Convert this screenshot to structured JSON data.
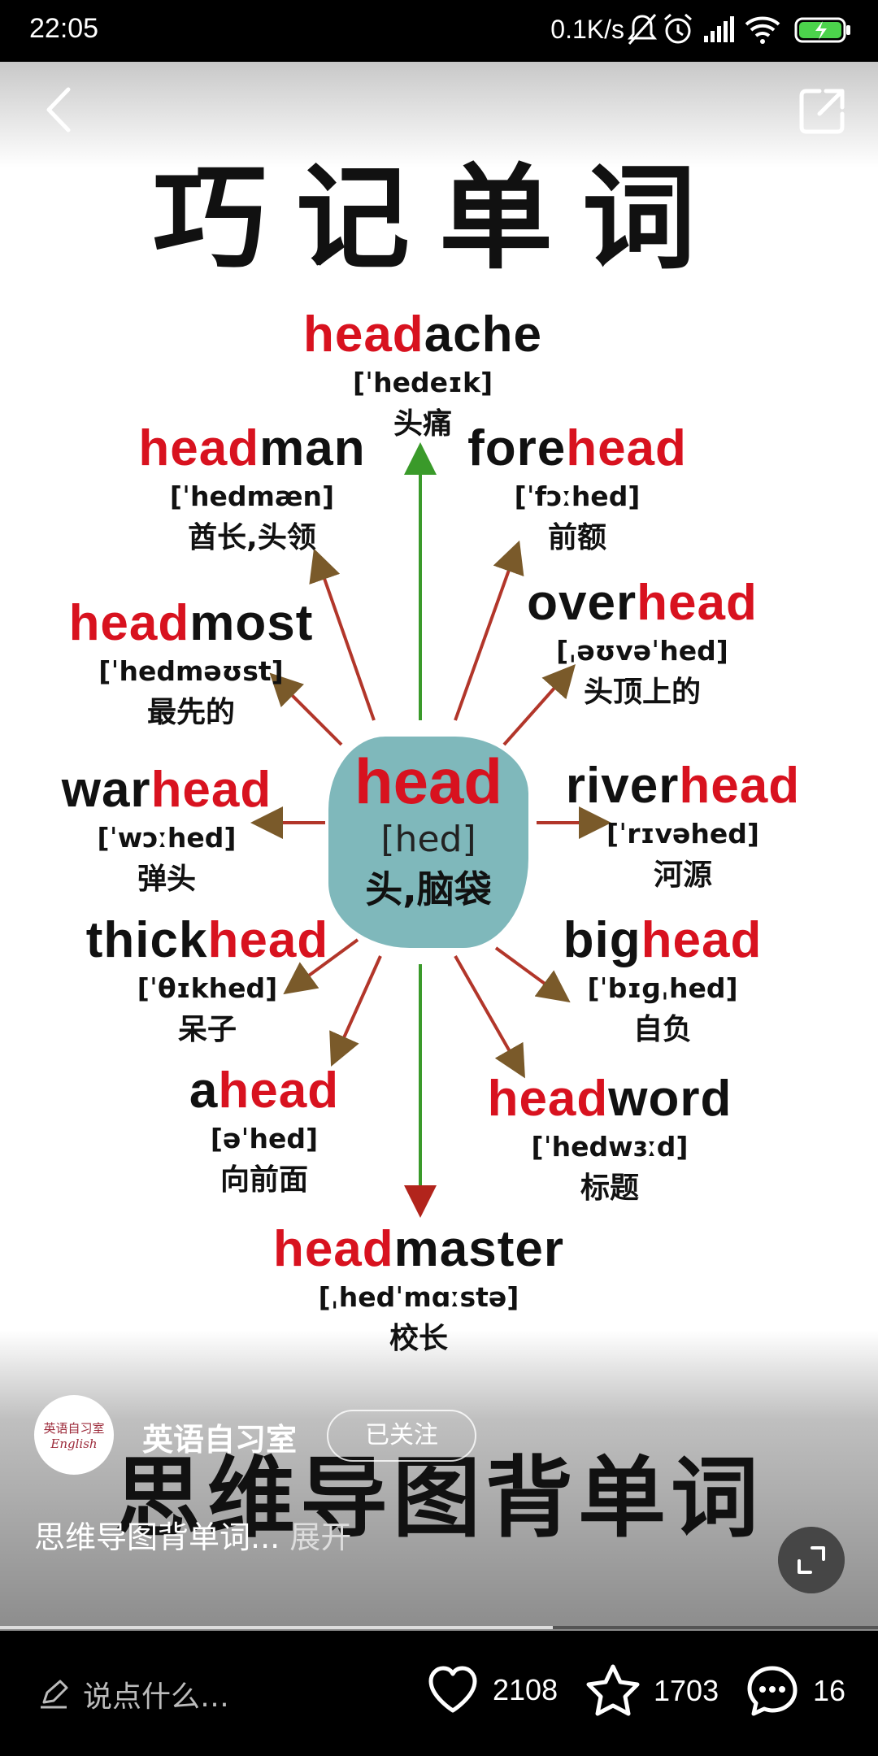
{
  "status_bar": {
    "time": "22:05",
    "net_speed": "0.1K/s"
  },
  "image": {
    "title": "巧记单词",
    "center": {
      "word": "head",
      "phonetic": "[hed]",
      "meaning": "头,脑袋"
    },
    "words": [
      {
        "red_prefix": "head",
        "black": "ache",
        "red_suffix": "",
        "phonetic": "[ˈhedeɪk]",
        "meaning": "头痛"
      },
      {
        "red_prefix": "",
        "black": "fore",
        "red_suffix": "head",
        "phonetic": "[ˈfɔːhed]",
        "meaning": "前额"
      },
      {
        "red_prefix": "head",
        "black": "man",
        "red_suffix": "",
        "phonetic": "[ˈhedmæn]",
        "meaning": "酋长,头领"
      },
      {
        "red_prefix": "",
        "black": "over",
        "red_suffix": "head",
        "phonetic": "[ˌəʊvəˈhed]",
        "meaning": "头顶上的"
      },
      {
        "red_prefix": "head",
        "black": "most",
        "red_suffix": "",
        "phonetic": "[ˈhedməʊst]",
        "meaning": "最先的"
      },
      {
        "red_prefix": "",
        "black": "war",
        "red_suffix": "head",
        "phonetic": "[ˈwɔːhed]",
        "meaning": "弹头"
      },
      {
        "red_prefix": "",
        "black": "river",
        "red_suffix": "head",
        "phonetic": "[ˈrɪvəhed]",
        "meaning": "河源"
      },
      {
        "red_prefix": "",
        "black": "thick",
        "red_suffix": "head",
        "phonetic": "[ˈθɪkhed]",
        "meaning": "呆子"
      },
      {
        "red_prefix": "",
        "black": "big",
        "red_suffix": "head",
        "phonetic": "[ˈbɪɡˌhed]",
        "meaning": "自负"
      },
      {
        "red_prefix": "",
        "black": "a",
        "red_suffix": "head",
        "phonetic": "[əˈhed]",
        "meaning": "向前面"
      },
      {
        "red_prefix": "head",
        "black": "word",
        "red_suffix": "",
        "phonetic": "[ˈhedwɜːd]",
        "meaning": "标题"
      },
      {
        "red_prefix": "head",
        "black": "master",
        "red_suffix": "",
        "phonetic": "[ˌhedˈmɑːstə]",
        "meaning": "校长"
      }
    ],
    "subtitle": "思维导图背单词"
  },
  "author": {
    "avatar_line1": "英语自习室",
    "avatar_line2": "English",
    "name": "英语自习室",
    "follow_label": "已关注"
  },
  "description": {
    "text": "思维导图背单词...",
    "expand_label": "展开"
  },
  "progress": 0.63,
  "bottom_bar": {
    "comment_placeholder": "说点什么…",
    "likes": "2108",
    "favorites": "1703",
    "comments": "16"
  },
  "colors": {
    "accent_red": "#d8121f",
    "blob": "#7fb8bb"
  }
}
